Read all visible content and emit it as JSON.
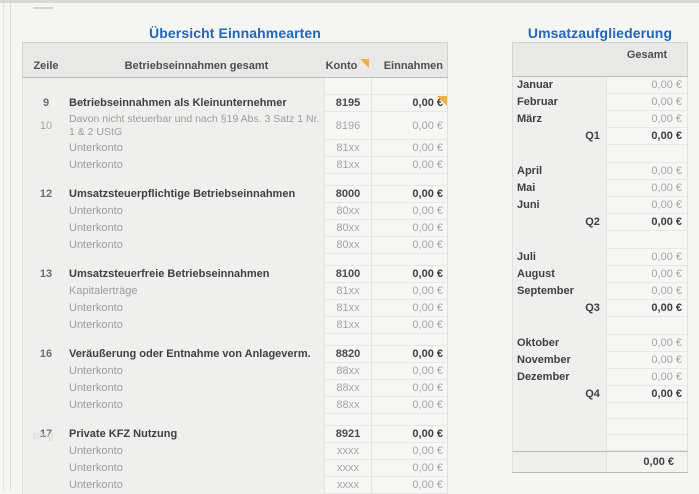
{
  "colors": {
    "accent_blue": "#1e66bf",
    "comment_marker": "#f0b041",
    "header_band": "#e8e8e6",
    "body_bg": "#efefed",
    "cell_bg": "#f6f6f4"
  },
  "watermark": "blog",
  "left_panel": {
    "title": "Übersicht Einnahmearten",
    "columns": {
      "zeile": "Zeile",
      "name": "Betriebseinnahmen gesamt",
      "konto": "Konto",
      "einnahmen": "Einnahmen"
    },
    "konto_header_has_comment": true,
    "rows": [
      {
        "type": "empty"
      },
      {
        "type": "main",
        "zeile": "9",
        "name": "Betriebseinnahmen als Kleinunternehmer",
        "konto": "8195",
        "value": "0,00 €",
        "comment": true
      },
      {
        "type": "sub2",
        "zeile": "10",
        "name": "Davon nicht steuerbar und nach §19 Abs. 3 Satz 1 Nr. 1 & 2 UStG",
        "konto": "8196",
        "value": "0,00 €"
      },
      {
        "type": "sub",
        "zeile": "",
        "name": "Unterkonto",
        "konto": "81xx",
        "value": "0,00 €"
      },
      {
        "type": "sub",
        "zeile": "",
        "name": "Unterkonto",
        "konto": "81xx",
        "value": "0,00 €"
      },
      {
        "type": "spacer"
      },
      {
        "type": "main",
        "zeile": "12",
        "name": "Umsatzsteuerpflichtige Betriebseinnahmen",
        "konto": "8000",
        "value": "0,00 €"
      },
      {
        "type": "sub",
        "zeile": "",
        "name": "Unterkonto",
        "konto": "80xx",
        "value": "0,00 €"
      },
      {
        "type": "sub",
        "zeile": "",
        "name": "Unterkonto",
        "konto": "80xx",
        "value": "0,00 €"
      },
      {
        "type": "sub",
        "zeile": "",
        "name": "Unterkonto",
        "konto": "80xx",
        "value": "0,00 €"
      },
      {
        "type": "spacer"
      },
      {
        "type": "main",
        "zeile": "13",
        "name": "Umsatzsteuerfreie Betriebseinnahmen",
        "konto": "8100",
        "value": "0,00 €"
      },
      {
        "type": "sub",
        "zeile": "",
        "name": "Kapitalerträge",
        "konto": "81xx",
        "value": "0,00 €"
      },
      {
        "type": "sub",
        "zeile": "",
        "name": "Unterkonto",
        "konto": "81xx",
        "value": "0,00 €"
      },
      {
        "type": "sub",
        "zeile": "",
        "name": "Unterkonto",
        "konto": "81xx",
        "value": "0,00 €"
      },
      {
        "type": "spacer"
      },
      {
        "type": "main",
        "zeile": "16",
        "name": "Veräußerung oder Entnahme von Anlageverm.",
        "konto": "8820",
        "value": "0,00 €"
      },
      {
        "type": "sub",
        "zeile": "",
        "name": "Unterkonto",
        "konto": "88xx",
        "value": "0,00 €"
      },
      {
        "type": "sub",
        "zeile": "",
        "name": "Unterkonto",
        "konto": "88xx",
        "value": "0,00 €"
      },
      {
        "type": "sub",
        "zeile": "",
        "name": "Unterkonto",
        "konto": "88xx",
        "value": "0,00 €"
      },
      {
        "type": "spacer"
      },
      {
        "type": "main",
        "zeile": "17",
        "name": "Private KFZ Nutzung",
        "konto": "8921",
        "value": "0,00 €"
      },
      {
        "type": "sub",
        "zeile": "",
        "name": "Unterkonto",
        "konto": "xxxx",
        "value": "0,00 €"
      },
      {
        "type": "sub",
        "zeile": "",
        "name": "Unterkonto",
        "konto": "xxxx",
        "value": "0,00 €"
      },
      {
        "type": "sub",
        "zeile": "",
        "name": "Unterkonto",
        "konto": "xxxx",
        "value": "0,00 €"
      }
    ]
  },
  "right_panel": {
    "title": "Umsatzaufgliederung",
    "column_header": "Gesamt",
    "rows": [
      {
        "type": "month",
        "label": "Januar",
        "value": "0,00 €"
      },
      {
        "type": "month",
        "label": "Februar",
        "value": "0,00 €"
      },
      {
        "type": "month",
        "label": "März",
        "value": "0,00 €"
      },
      {
        "type": "quarter",
        "label": "Q1",
        "value": "0,00 €"
      },
      {
        "type": "spacer"
      },
      {
        "type": "month",
        "label": "April",
        "value": "0,00 €"
      },
      {
        "type": "month",
        "label": "Mai",
        "value": "0,00 €"
      },
      {
        "type": "month",
        "label": "Juni",
        "value": "0,00 €"
      },
      {
        "type": "quarter",
        "label": "Q2",
        "value": "0,00 €"
      },
      {
        "type": "spacer"
      },
      {
        "type": "month",
        "label": "Juli",
        "value": "0,00 €"
      },
      {
        "type": "month",
        "label": "August",
        "value": "0,00 €"
      },
      {
        "type": "month",
        "label": "September",
        "value": "0,00 €"
      },
      {
        "type": "quarter",
        "label": "Q3",
        "value": "0,00 €"
      },
      {
        "type": "spacer"
      },
      {
        "type": "month",
        "label": "Oktober",
        "value": "0,00 €"
      },
      {
        "type": "month",
        "label": "November",
        "value": "0,00 €"
      },
      {
        "type": "month",
        "label": "Dezember",
        "value": "0,00 €"
      },
      {
        "type": "quarter",
        "label": "Q4",
        "value": "0,00 €"
      },
      {
        "type": "empty"
      },
      {
        "type": "empty"
      },
      {
        "type": "empty"
      }
    ],
    "total_value": "0,00 €"
  }
}
